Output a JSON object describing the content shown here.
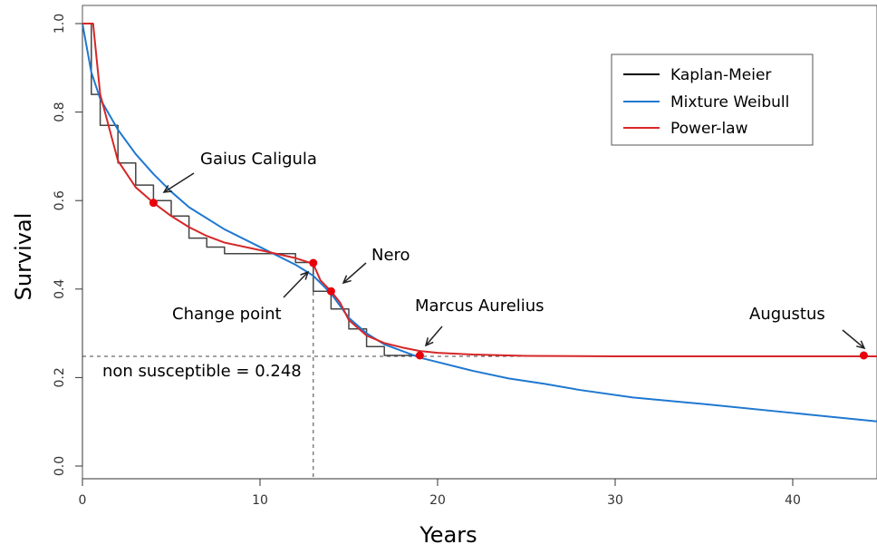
{
  "chart_data": {
    "type": "line",
    "xlabel": "Years",
    "ylabel": "Survival",
    "xlim": [
      0,
      45
    ],
    "ylim": [
      0,
      1.0
    ],
    "x_ticks": [
      0,
      10,
      20,
      30,
      40
    ],
    "y_ticks": [
      0.0,
      0.2,
      0.4,
      0.6,
      0.8,
      1.0
    ],
    "y_tick_labels": [
      "0.0",
      "0.2",
      "0.4",
      "0.6",
      "0.8",
      "1.0"
    ],
    "grid": false,
    "legend_position": "top-right",
    "series": [
      {
        "name": "Kaplan-Meier",
        "color": "#444444",
        "step": true,
        "x": [
          0,
          0.5,
          1,
          2,
          3,
          4,
          5,
          6,
          7,
          8,
          12,
          13,
          14,
          15,
          16,
          17,
          19
        ],
        "y": [
          1.0,
          0.84,
          0.77,
          0.685,
          0.635,
          0.6,
          0.565,
          0.515,
          0.495,
          0.48,
          0.46,
          0.395,
          0.355,
          0.31,
          0.27,
          0.25,
          0.25
        ]
      },
      {
        "name": "Mixture Weibull",
        "color": "#1f78d1",
        "x": [
          0,
          0.5,
          1,
          2,
          3,
          4,
          5,
          6,
          8,
          10,
          12,
          13,
          14,
          15,
          16,
          17,
          18,
          19,
          20,
          22,
          24,
          26,
          28,
          31,
          35,
          40,
          45
        ],
        "y": [
          1.0,
          0.89,
          0.83,
          0.76,
          0.705,
          0.66,
          0.62,
          0.585,
          0.535,
          0.495,
          0.455,
          0.43,
          0.39,
          0.335,
          0.3,
          0.275,
          0.26,
          0.245,
          0.235,
          0.215,
          0.198,
          0.186,
          0.172,
          0.155,
          0.14,
          0.12,
          0.1
        ]
      },
      {
        "name": "Power-law",
        "color": "#d62728",
        "x": [
          0,
          0.6,
          1,
          2,
          3,
          4,
          5,
          6,
          7,
          8,
          10,
          12,
          13,
          13.4,
          14,
          14.5,
          15,
          16,
          17,
          18,
          19,
          20,
          22,
          25,
          30,
          35,
          40,
          45
        ],
        "y": [
          1.0,
          1.0,
          0.84,
          0.69,
          0.63,
          0.595,
          0.565,
          0.54,
          0.52,
          0.505,
          0.488,
          0.47,
          0.457,
          0.42,
          0.395,
          0.37,
          0.33,
          0.295,
          0.278,
          0.268,
          0.26,
          0.256,
          0.252,
          0.249,
          0.248,
          0.248,
          0.248,
          0.248
        ]
      }
    ],
    "highlight_points": {
      "color": "#e8000b",
      "points": [
        {
          "x": 4,
          "y": 0.595
        },
        {
          "x": 13,
          "y": 0.459
        },
        {
          "x": 14,
          "y": 0.395
        },
        {
          "x": 19,
          "y": 0.25
        },
        {
          "x": 44,
          "y": 0.25
        }
      ]
    },
    "reference_lines": {
      "horizontal_y": 0.248,
      "vertical_x": 13
    },
    "annotations": [
      {
        "text": "Gaius Caligula",
        "point_x": 4,
        "point_y": 0.595
      },
      {
        "text": "Change point",
        "point_x": 13,
        "point_y": 0.459
      },
      {
        "text": "Nero",
        "point_x": 14,
        "point_y": 0.395
      },
      {
        "text": "Marcus Aurelius",
        "point_x": 19,
        "point_y": 0.25
      },
      {
        "text": "Augustus",
        "point_x": 44,
        "point_y": 0.25
      },
      {
        "text": "non susceptible = 0.248"
      }
    ]
  }
}
